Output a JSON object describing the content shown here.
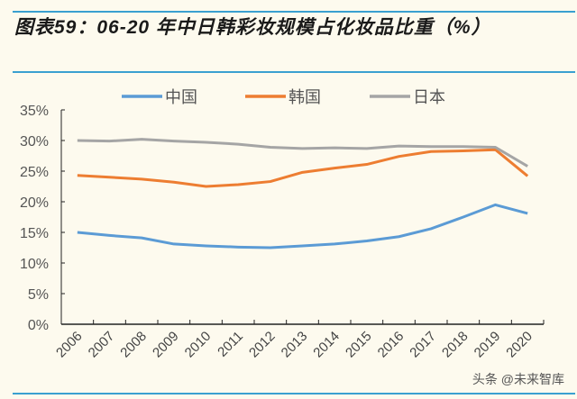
{
  "title": "图表59：06-20 年中日韩彩妆规模占化妆品比重（%）",
  "watermark": "头条 @未来智库",
  "chart_data": {
    "type": "line",
    "title": "图表59：06-20 年中日韩彩妆规模占化妆品比重（%）",
    "categories": [
      "2006",
      "2007",
      "2008",
      "2009",
      "2010",
      "2011",
      "2012",
      "2013",
      "2014",
      "2015",
      "2016",
      "2017",
      "2018",
      "2019",
      "2020"
    ],
    "series": [
      {
        "name": "中国",
        "color": "#5b9bd5",
        "values": [
          15.0,
          14.5,
          14.1,
          13.1,
          12.8,
          12.6,
          12.5,
          12.8,
          13.1,
          13.6,
          14.3,
          15.6,
          17.5,
          19.5,
          18.1
        ]
      },
      {
        "name": "韩国",
        "color": "#ed7d31",
        "values": [
          24.3,
          24.0,
          23.7,
          23.2,
          22.5,
          22.8,
          23.3,
          24.8,
          25.5,
          26.1,
          27.4,
          28.2,
          28.3,
          28.5,
          24.2
        ]
      },
      {
        "name": "日本",
        "color": "#a5a5a5",
        "values": [
          30.0,
          29.9,
          30.2,
          29.9,
          29.7,
          29.4,
          28.9,
          28.7,
          28.8,
          28.7,
          29.1,
          29.0,
          29.0,
          28.9,
          25.8
        ]
      }
    ],
    "yticks": [
      "0%",
      "5%",
      "10%",
      "15%",
      "20%",
      "25%",
      "30%",
      "35%"
    ],
    "ylim": [
      0,
      35
    ],
    "xlabel": "",
    "ylabel": "",
    "grid": false,
    "legend": "top"
  }
}
